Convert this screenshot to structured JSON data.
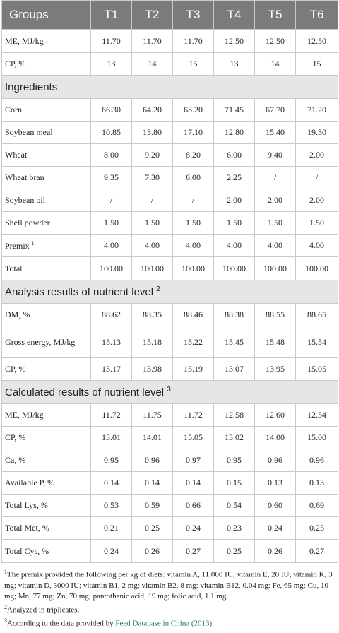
{
  "table": {
    "headers": [
      "Groups",
      "T1",
      "T2",
      "T3",
      "T4",
      "T5",
      "T6"
    ],
    "top_rows": [
      {
        "label": "ME, MJ/kg",
        "values": [
          "11.70",
          "11.70",
          "11.70",
          "12.50",
          "12.50",
          "12.50"
        ]
      },
      {
        "label": "CP, %",
        "values": [
          "13",
          "14",
          "15",
          "13",
          "14",
          "15"
        ]
      }
    ],
    "ingredients_title": "Ingredients",
    "ingredients": [
      {
        "label": "Corn",
        "values": [
          "66.30",
          "64.20",
          "63.20",
          "71.45",
          "67.70",
          "71.20"
        ]
      },
      {
        "label": "Soybean meal",
        "values": [
          "10.85",
          "13.80",
          "17.10",
          "12.80",
          "15.40",
          "19.30"
        ]
      },
      {
        "label": "Wheat",
        "values": [
          "8.00",
          "9.20",
          "8.20",
          "6.00",
          "9.40",
          "2.00"
        ]
      },
      {
        "label": "Wheat bran",
        "values": [
          "9.35",
          "7.30",
          "6.00",
          "2.25",
          "/",
          "/"
        ]
      },
      {
        "label": "Soybean oil",
        "values": [
          "/",
          "/",
          "/",
          "2.00",
          "2.00",
          "2.00"
        ]
      },
      {
        "label": "Shell powder",
        "values": [
          "1.50",
          "1.50",
          "1.50",
          "1.50",
          "1.50",
          "1.50"
        ]
      },
      {
        "label": "Premix",
        "sup": "1",
        "values": [
          "4.00",
          "4.00",
          "4.00",
          "4.00",
          "4.00",
          "4.00"
        ]
      },
      {
        "label": "Total",
        "values": [
          "100.00",
          "100.00",
          "100.00",
          "100.00",
          "100.00",
          "100.00"
        ]
      }
    ],
    "analysis_title": "Analysis results of nutrient level",
    "analysis_sup": "2",
    "analysis": [
      {
        "label": "DM, %",
        "values": [
          "88.62",
          "88.35",
          "88.46",
          "88.38",
          "88.55",
          "88.65"
        ]
      },
      {
        "label": "Gross energy, MJ/kg",
        "values": [
          "15.13",
          "15.18",
          "15.22",
          "15.45",
          "15.48",
          "15.54"
        ]
      },
      {
        "label": "CP, %",
        "values": [
          "13.17",
          "13.98",
          "15.19",
          "13.07",
          "13.95",
          "15.05"
        ]
      }
    ],
    "calculated_title": "Calculated results of nutrient level",
    "calculated_sup": "3",
    "calculated": [
      {
        "label": "ME, MJ/kg",
        "values": [
          "11.72",
          "11.75",
          "11.72",
          "12.58",
          "12.60",
          "12.54"
        ]
      },
      {
        "label": "CP, %",
        "values": [
          "13.01",
          "14.01",
          "15.05",
          "13.02",
          "14.00",
          "15.00"
        ]
      },
      {
        "label": "Ca, %",
        "values": [
          "0.95",
          "0.96",
          "0.97",
          "0.95",
          "0.96",
          "0.96"
        ]
      },
      {
        "label": "Available P, %",
        "values": [
          "0.14",
          "0.14",
          "0.14",
          "0.15",
          "0.13",
          "0.13"
        ]
      },
      {
        "label": "Total Lys, %",
        "values": [
          "0.53",
          "0.59",
          "0.66",
          "0.54",
          "0.60",
          "0.69"
        ]
      },
      {
        "label": "Total Met, %",
        "values": [
          "0.21",
          "0.25",
          "0.24",
          "0.23",
          "0.24",
          "0.25"
        ]
      },
      {
        "label": "Total Cys, %",
        "values": [
          "0.24",
          "0.26",
          "0.27",
          "0.25",
          "0.26",
          "0.27"
        ]
      }
    ]
  },
  "footnotes": {
    "n1_mark": "1",
    "n1_text": "The premix provided the following per kg of diets: vitamin A, 11,000 IU; vitamin E, 20 IU; vitamin K, 3 mg; vitamin D, 3000 IU; vitamin B1, 2 mg; vitamin B2, 8 mg; vitamin B12, 0.04 mg; Fe, 65 mg; Cu, 10 mg; Mn, 77 mg; Zn, 70 mg; pantothenic acid, 19 mg; folic acid, 1.1 mg.",
    "n2_mark": "2",
    "n2_text": "Analyzed in triplicates.",
    "n3_mark": "3",
    "n3_text_pre": "According to the data provided by ",
    "n3_link": "Feed Database in China (2013)",
    "n3_text_post": "."
  }
}
